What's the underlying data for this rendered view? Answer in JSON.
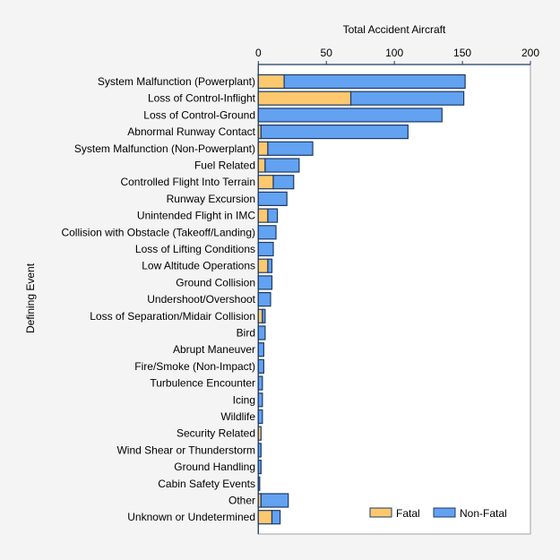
{
  "chart_data": {
    "type": "bar",
    "orientation": "horizontal",
    "stacked": true,
    "title": "",
    "xlabel": "Total Accident Aircraft",
    "ylabel": "Defining Event",
    "xlim": [
      0,
      200
    ],
    "xticks": [
      0,
      50,
      100,
      150,
      200
    ],
    "grid": false,
    "legend_position": "bottom-right",
    "colors": {
      "Fatal": "#fec96e",
      "Non-Fatal": "#63a2f1",
      "edge": "#1b3a66"
    },
    "categories": [
      "System Malfunction (Powerplant)",
      "Loss of Control-Inflight",
      "Loss of Control-Ground",
      "Abnormal Runway Contact",
      "System Malfunction (Non-Powerplant)",
      "Fuel Related",
      "Controlled Flight Into Terrain",
      "Runway Excursion",
      "Unintended Flight in IMC",
      "Collision with Obstacle (Takeoff/Landing)",
      "Loss of Lifting Conditions",
      "Low Altitude Operations",
      "Ground Collision",
      "Undershoot/Overshoot",
      "Loss of Separation/Midair Collision",
      "Bird",
      "Abrupt Maneuver",
      "Fire/Smoke (Non-Impact)",
      "Turbulence Encounter",
      "Icing",
      "Wildlife",
      "Security Related",
      "Wind Shear or Thunderstorm",
      "Ground Handling",
      "Cabin Safety Events",
      "Other",
      "Unknown or Undetermined"
    ],
    "series": [
      {
        "name": "Fatal",
        "values": [
          19,
          68,
          0,
          2,
          7,
          5,
          11,
          0,
          7,
          0,
          0,
          7,
          0,
          0,
          3,
          0,
          0,
          0,
          0,
          0,
          0,
          2,
          0,
          0,
          0,
          2,
          10
        ]
      },
      {
        "name": "Non-Fatal",
        "values": [
          133,
          83,
          135,
          108,
          33,
          25,
          15,
          21,
          7,
          13,
          11,
          3,
          10,
          9,
          2,
          5,
          4,
          4,
          3,
          3,
          3,
          0,
          2,
          2,
          1,
          20,
          6
        ]
      }
    ]
  }
}
